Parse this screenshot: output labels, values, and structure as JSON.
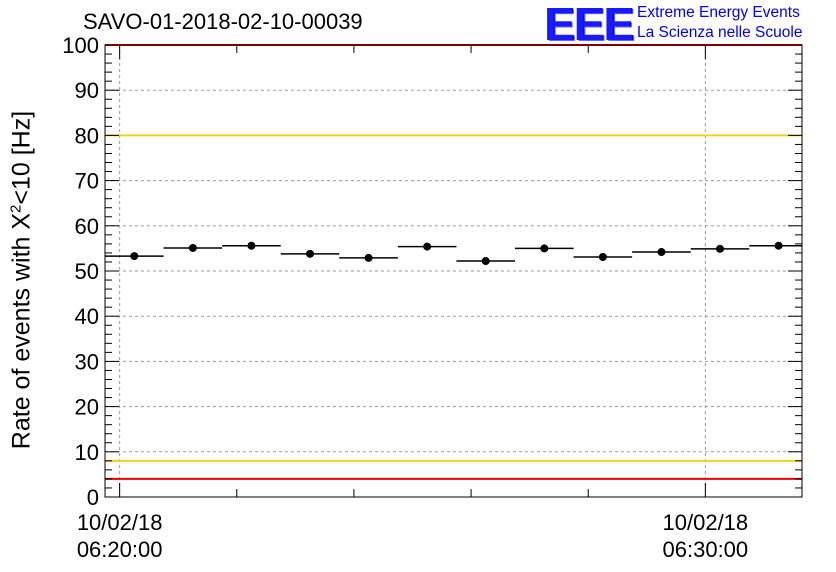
{
  "chart_data": {
    "type": "scatter",
    "title": "SAVO-01-2018-02-10-00039",
    "ylabel_prefix": "Rate of events with X",
    "ylabel_sup": "2",
    "ylabel_suffix": "<10 [Hz]",
    "ylim": [
      0,
      100
    ],
    "yticks": [
      "0",
      "10",
      "20",
      "30",
      "40",
      "50",
      "60",
      "70",
      "80",
      "90",
      "100"
    ],
    "xlim_minutes": [
      -0.25,
      11.65
    ],
    "xtick_labels": [
      {
        "minute": 0,
        "date": "10/02/18",
        "time": "06:20:00"
      },
      {
        "minute": 10,
        "date": "10/02/18",
        "time": "06:30:00"
      }
    ],
    "bin_width_minutes": 1,
    "points": [
      {
        "x": 0.25,
        "y": 53.3
      },
      {
        "x": 1.25,
        "y": 55.1
      },
      {
        "x": 2.25,
        "y": 55.6
      },
      {
        "x": 3.25,
        "y": 53.8
      },
      {
        "x": 4.25,
        "y": 52.9
      },
      {
        "x": 5.25,
        "y": 55.4
      },
      {
        "x": 6.25,
        "y": 52.2
      },
      {
        "x": 7.25,
        "y": 55.0
      },
      {
        "x": 8.25,
        "y": 53.1
      },
      {
        "x": 9.25,
        "y": 54.2
      },
      {
        "x": 10.25,
        "y": 54.9
      },
      {
        "x": 11.25,
        "y": 55.6
      }
    ],
    "reference_lines": [
      {
        "name": "upper-limit-red",
        "y": 100,
        "color": "#ee0000"
      },
      {
        "name": "upper-warning-yellow",
        "y": 80,
        "color": "#f2d21a"
      },
      {
        "name": "lower-warning-yellow",
        "y": 8,
        "color": "#f2d21a"
      },
      {
        "name": "lower-limit-red",
        "y": 4,
        "color": "#ee0000"
      }
    ],
    "grid": true
  },
  "logo": {
    "text": "EEE",
    "line1": "Extreme Energy Events",
    "line2": "La Scienza nelle Scuole",
    "color": "#1a1aff"
  }
}
